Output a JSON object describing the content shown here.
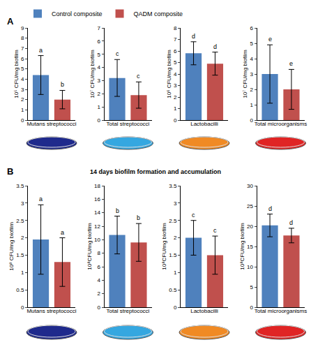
{
  "chart_data": [
    {
      "type": "bar",
      "annotations": [
        "A"
      ],
      "legend": "top left",
      "grid": false,
      "charts": [
        {
          "type": "bar",
          "x_label": "Mutans streptococci",
          "y_label": "10⁵ CFU/mg biofilm",
          "ylim": [
            0,
            9
          ],
          "yticks": [
            0,
            1,
            2,
            3,
            4,
            5,
            6,
            7,
            8,
            9
          ],
          "series": [
            {
              "name": "Control composite",
              "color": "#4f81bd",
              "values": [
                4.4
              ],
              "errors": [
                1.9
              ],
              "annotations": [
                "a"
              ]
            },
            {
              "name": "QADM composite",
              "color": "#c0504d",
              "values": [
                2.0
              ],
              "errors": [
                0.9
              ],
              "annotations": [
                "b"
              ]
            }
          ]
        },
        {
          "type": "bar",
          "x_label": "Total streptococci",
          "y_label": "10⁷ CFU/mg biofilm",
          "ylim": [
            0,
            7
          ],
          "yticks": [
            0,
            1,
            2,
            3,
            4,
            5,
            6,
            7
          ],
          "series": [
            {
              "name": "Control composite",
              "color": "#4f81bd",
              "values": [
                3.2
              ],
              "errors": [
                1.4
              ],
              "annotations": [
                "c"
              ]
            },
            {
              "name": "QADM composite",
              "color": "#c0504d",
              "values": [
                1.9
              ],
              "errors": [
                1.0
              ],
              "annotations": [
                "c"
              ]
            }
          ]
        },
        {
          "type": "bar",
          "x_label": "Lactobacilli",
          "y_label": "10⁶ CFU/mg biofilm",
          "ylim": [
            0,
            8
          ],
          "yticks": [
            0,
            1,
            2,
            3,
            4,
            5,
            6,
            7,
            8
          ],
          "series": [
            {
              "name": "Control composite",
              "color": "#4f81bd",
              "values": [
                5.8
              ],
              "errors": [
                1.0
              ],
              "annotations": [
                "d"
              ]
            },
            {
              "name": "QADM composite",
              "color": "#c0504d",
              "values": [
                4.9
              ],
              "errors": [
                1.0
              ],
              "annotations": [
                "d"
              ]
            }
          ]
        },
        {
          "type": "bar",
          "x_label": "Total microorganisms",
          "y_label": "10⁷ CFU/mg biofilm",
          "ylim": [
            0,
            6
          ],
          "yticks": [
            0,
            1,
            2,
            3,
            4,
            5,
            6
          ],
          "series": [
            {
              "name": "Control composite",
              "color": "#4f81bd",
              "values": [
                3.0
              ],
              "errors": [
                1.9
              ],
              "annotations": [
                "e"
              ]
            },
            {
              "name": "QADM composite",
              "color": "#c0504d",
              "values": [
                2.0
              ],
              "errors": [
                1.3
              ],
              "annotations": [
                "e"
              ]
            }
          ]
        }
      ]
    },
    {
      "type": "bar",
      "annotations": [
        "B"
      ],
      "title": "14 days biofilm formation and accumulation",
      "grid": false,
      "charts": [
        {
          "type": "bar",
          "x_label": "Mutans streptococci",
          "y_label": "10⁸ CFU/mg biofilm",
          "ylim": [
            0,
            3.5
          ],
          "yticks": [
            0,
            0.5,
            1,
            1.5,
            2,
            2.5,
            3,
            3.5
          ],
          "series": [
            {
              "name": "Control composite",
              "color": "#4f81bd",
              "values": [
                1.95
              ],
              "errors": [
                1.0
              ],
              "annotations": [
                "a"
              ]
            },
            {
              "name": "QADM composite",
              "color": "#c0504d",
              "values": [
                1.3
              ],
              "errors": [
                0.7
              ],
              "annotations": [
                "a"
              ]
            }
          ]
        },
        {
          "type": "bar",
          "x_label": "Total streptococci",
          "y_label": "10⁸CFU/mg biofilm",
          "ylim": [
            0,
            18
          ],
          "yticks": [
            0,
            2,
            4,
            6,
            8,
            10,
            12,
            14,
            16,
            18
          ],
          "series": [
            {
              "name": "Control composite",
              "color": "#4f81bd",
              "values": [
                10.7
              ],
              "errors": [
                2.8
              ],
              "annotations": [
                "b"
              ]
            },
            {
              "name": "QADM composite",
              "color": "#c0504d",
              "values": [
                9.6
              ],
              "errors": [
                2.8
              ],
              "annotations": [
                "b"
              ]
            }
          ]
        },
        {
          "type": "bar",
          "x_label": "Lactobacilli",
          "y_label": "10⁸CFU/mg biofilm",
          "ylim": [
            0,
            3.5
          ],
          "yticks": [
            0,
            0.5,
            1,
            1.5,
            2,
            2.5,
            3,
            3.5
          ],
          "series": [
            {
              "name": "Control composite",
              "color": "#4f81bd",
              "values": [
                2.0
              ],
              "errors": [
                0.5
              ],
              "annotations": [
                "c"
              ]
            },
            {
              "name": "QADM composite",
              "color": "#c0504d",
              "values": [
                1.5
              ],
              "errors": [
                0.55
              ],
              "annotations": [
                "c"
              ]
            }
          ]
        },
        {
          "type": "bar",
          "x_label": "Total microorganisms",
          "y_label": "10⁸CFU/mg biofilm",
          "ylim": [
            0,
            30
          ],
          "yticks": [
            0,
            5,
            10,
            15,
            20,
            25,
            30
          ],
          "series": [
            {
              "name": "Control composite",
              "color": "#4f81bd",
              "values": [
                20.2
              ],
              "errors": [
                2.8
              ],
              "annotations": [
                "d"
              ]
            },
            {
              "name": "QADM composite",
              "color": "#c0504d",
              "values": [
                17.7
              ],
              "errors": [
                1.8
              ],
              "annotations": [
                "d"
              ]
            }
          ]
        }
      ]
    }
  ]
}
